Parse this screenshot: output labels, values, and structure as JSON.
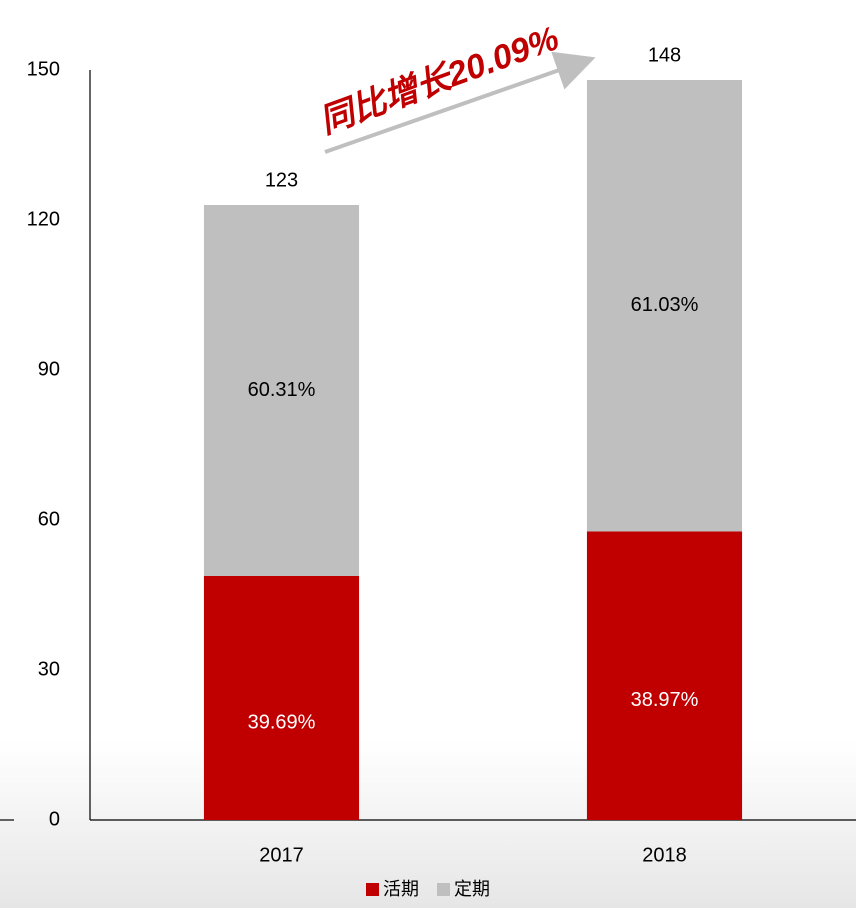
{
  "chart_data": {
    "type": "stacked_bar",
    "categories": [
      "2017",
      "2018"
    ],
    "series": [
      {
        "name": "活期",
        "color": "#c00000",
        "values": [
          48.8,
          57.7
        ],
        "percent_labels": [
          "39.69%",
          "38.97%"
        ],
        "label_color": "#ffffff"
      },
      {
        "name": "定期",
        "color": "#bfbfbf",
        "values": [
          74.2,
          90.3
        ],
        "percent_labels": [
          "60.31%",
          "61.03%"
        ],
        "label_color": "#000000"
      }
    ],
    "totals": [
      123,
      148
    ],
    "annotation": {
      "text": "同比增长20.09%",
      "color": "#c00000"
    },
    "ylim": [
      0,
      150
    ],
    "yticks": [
      0,
      30,
      60,
      90,
      120,
      150
    ],
    "grid": false,
    "legend": "bottom"
  }
}
